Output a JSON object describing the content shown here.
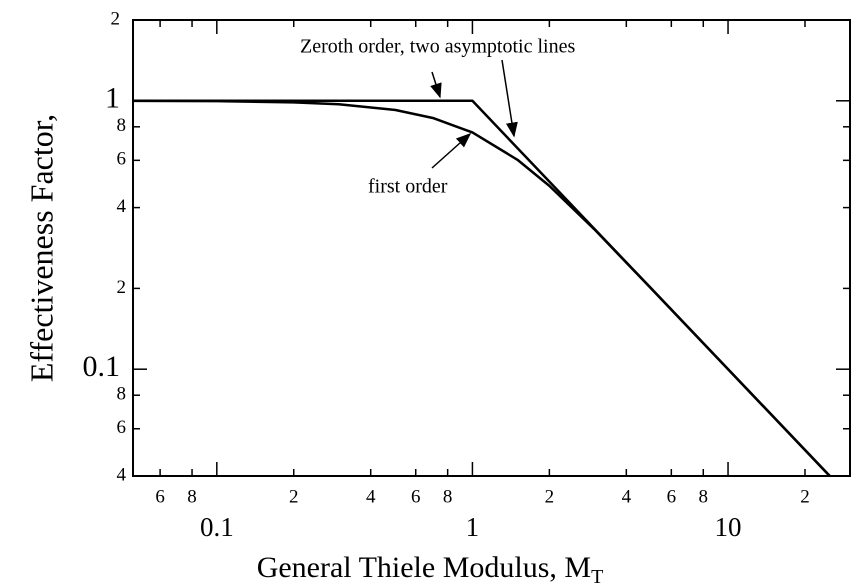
{
  "chart_data": {
    "type": "line",
    "xlabel": "General Thiele Modulus, M",
    "xlabel_sub": "T",
    "ylabel": "Effectiveness Factor,",
    "xscale": "log",
    "yscale": "log",
    "xlim": [
      0.047,
      30
    ],
    "ylim": [
      0.04,
      2
    ],
    "xticks": [
      {
        "value": 0.06,
        "label": "6"
      },
      {
        "value": 0.08,
        "label": "8"
      },
      0.1,
      {
        "value": 0.2,
        "label": "2"
      },
      {
        "value": 0.4,
        "label": "4"
      },
      {
        "value": 0.6,
        "label": "6"
      },
      {
        "value": 0.8,
        "label": "8"
      },
      1,
      {
        "value": 2,
        "label": "2"
      },
      {
        "value": 4,
        "label": "4"
      },
      {
        "value": 6,
        "label": "6"
      },
      {
        "value": 8,
        "label": "8"
      },
      10,
      {
        "value": 20,
        "label": "2"
      }
    ],
    "yticks": [
      {
        "value": 0.04,
        "label": "4"
      },
      {
        "value": 0.06,
        "label": "6"
      },
      {
        "value": 0.08,
        "label": "8"
      },
      0.1,
      {
        "value": 0.2,
        "label": "2"
      },
      {
        "value": 0.4,
        "label": "4"
      },
      {
        "value": 0.6,
        "label": "6"
      },
      {
        "value": 0.8,
        "label": "8"
      },
      1,
      2
    ],
    "series": [
      {
        "name": "Zeroth order",
        "color": "#000000",
        "x": [
          0.047,
          1,
          25
        ],
        "values": [
          1,
          1,
          0.04
        ]
      },
      {
        "name": "first order",
        "color": "#000000",
        "x": [
          0.047,
          0.1,
          0.2,
          0.3,
          0.5,
          0.7,
          1,
          1.5,
          2,
          3,
          5,
          10,
          25
        ],
        "values": [
          0.999,
          0.997,
          0.987,
          0.971,
          0.924,
          0.863,
          0.762,
          0.603,
          0.482,
          0.332,
          0.2,
          0.1,
          0.04
        ]
      }
    ],
    "annotations": [
      "Zeroth order,  two asymptotic lines",
      "first order"
    ]
  }
}
